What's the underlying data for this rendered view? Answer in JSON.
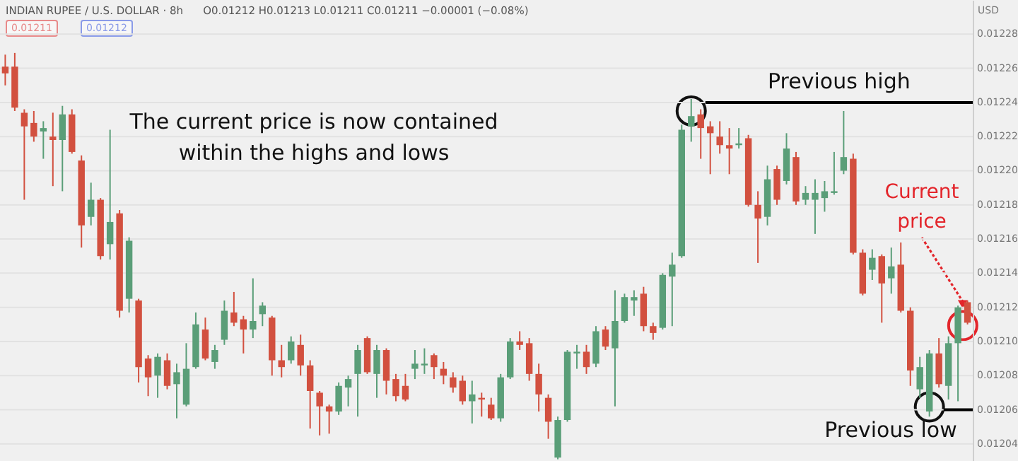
{
  "chart_data": {
    "type": "candlestick",
    "title": "INDIAN RUPEE / U.S. DOLLAR · 8h",
    "subtitle": "O0.01212 H0.01213 L0.01211 C0.01211 −0.00001 (−0.08%)",
    "ylabel": "USD",
    "categories": [
      null,
      null,
      null,
      null,
      null,
      null,
      null,
      null,
      null,
      null,
      null,
      null,
      null,
      null,
      null,
      null,
      null,
      null,
      null,
      null,
      null,
      null,
      null,
      null,
      null,
      null,
      null,
      null,
      null,
      null,
      null,
      null,
      null,
      null,
      null,
      null,
      null,
      null,
      null,
      null,
      null,
      null,
      null,
      null,
      null,
      null,
      null,
      null,
      null,
      null,
      null,
      null,
      null,
      null,
      null,
      null,
      null,
      null,
      null,
      null,
      null,
      null,
      null,
      null,
      null,
      null,
      null,
      null,
      null,
      null,
      null,
      null,
      null,
      null,
      null,
      null,
      null,
      null,
      null,
      null,
      null,
      null,
      null,
      null,
      null,
      null,
      null,
      null,
      null,
      null,
      null,
      null,
      null,
      null,
      null,
      null,
      null,
      null,
      null,
      null,
      null,
      null
    ],
    "ohlc": [
      [
        0.012261,
        0.012268,
        0.01225,
        0.012257
      ],
      [
        0.012261,
        0.012269,
        0.012235,
        0.012237
      ],
      [
        0.012234,
        0.012236,
        0.012183,
        0.012226
      ],
      [
        0.012228,
        0.012235,
        0.012217,
        0.01222
      ],
      [
        0.012223,
        0.012229,
        0.012207,
        0.012225
      ],
      [
        0.01222,
        0.012234,
        0.012191,
        0.012218
      ],
      [
        0.012218,
        0.012238,
        0.012188,
        0.012233
      ],
      [
        0.012233,
        0.012236,
        0.01221,
        0.012211
      ],
      [
        0.012206,
        0.012209,
        0.012155,
        0.012168
      ],
      [
        0.012173,
        0.012193,
        0.012168,
        0.012183
      ],
      [
        0.012183,
        0.012184,
        0.012148,
        0.01215
      ],
      [
        0.012157,
        0.012224,
        0.012148,
        0.01217
      ],
      [
        0.012175,
        0.012177,
        0.012114,
        0.012118
      ],
      [
        0.012125,
        0.012161,
        0.012117,
        0.012159
      ],
      [
        0.012124,
        0.012125,
        0.012076,
        0.012085
      ],
      [
        0.01209,
        0.012092,
        0.012068,
        0.012079
      ],
      [
        0.01208,
        0.012093,
        0.012067,
        0.012091
      ],
      [
        0.012089,
        0.012093,
        0.012072,
        0.012074
      ],
      [
        0.012075,
        0.012087,
        0.012055,
        0.012082
      ],
      [
        0.012063,
        0.012099,
        0.012062,
        0.012084
      ],
      [
        0.012085,
        0.012117,
        0.012084,
        0.01211
      ],
      [
        0.012107,
        0.012114,
        0.012089,
        0.01209
      ],
      [
        0.012088,
        0.012098,
        0.012084,
        0.012095
      ],
      [
        0.012101,
        0.012124,
        0.012098,
        0.012118
      ],
      [
        0.012117,
        0.012129,
        0.012109,
        0.012111
      ],
      [
        0.012113,
        0.012115,
        0.012093,
        0.012107
      ],
      [
        0.012107,
        0.012137,
        0.012102,
        0.012112
      ],
      [
        0.012116,
        0.012123,
        0.012109,
        0.012121
      ],
      [
        0.012114,
        0.012115,
        0.01208,
        0.012089
      ],
      [
        0.012089,
        0.012098,
        0.012079,
        0.012085
      ],
      [
        0.012089,
        0.012103,
        0.012087,
        0.0121
      ],
      [
        0.012098,
        0.012104,
        0.01208,
        0.012086
      ],
      [
        0.012086,
        0.012089,
        0.012049,
        0.012071
      ],
      [
        0.01207,
        0.012071,
        0.012045,
        0.012062
      ],
      [
        0.012062,
        0.012063,
        0.012046,
        0.012059
      ],
      [
        0.012059,
        0.012076,
        0.012057,
        0.012074
      ],
      [
        0.012073,
        0.01208,
        0.012062,
        0.012078
      ],
      [
        0.012081,
        0.012098,
        0.012056,
        0.012095
      ],
      [
        0.012102,
        0.012103,
        0.012081,
        0.012082
      ],
      [
        0.012081,
        0.012098,
        0.012067,
        0.012095
      ],
      [
        0.012095,
        0.012096,
        0.012069,
        0.012077
      ],
      [
        0.012078,
        0.012081,
        0.012065,
        0.012068
      ],
      [
        0.012074,
        0.012081,
        0.012065,
        0.012066
      ],
      [
        0.012084,
        0.012095,
        0.012078,
        0.012087
      ],
      [
        0.012086,
        0.012096,
        0.012081,
        0.012087
      ],
      [
        0.012092,
        0.012093,
        0.012078,
        0.012085
      ],
      [
        0.012084,
        0.012088,
        0.012075,
        0.01208
      ],
      [
        0.012079,
        0.012082,
        0.01207,
        0.012073
      ],
      [
        0.012077,
        0.01208,
        0.012063,
        0.012065
      ],
      [
        0.012065,
        0.012077,
        0.012052,
        0.012069
      ],
      [
        0.012067,
        0.01207,
        0.012056,
        0.012066
      ],
      [
        0.012063,
        0.012067,
        0.012054,
        0.012055
      ],
      [
        0.012055,
        0.012081,
        0.012053,
        0.012079
      ],
      [
        0.012079,
        0.012102,
        0.012078,
        0.0121
      ],
      [
        0.0121,
        0.012106,
        0.012095,
        0.012098
      ],
      [
        0.012099,
        0.012102,
        0.012077,
        0.012081
      ],
      [
        0.012081,
        0.012087,
        0.012059,
        0.012069
      ],
      [
        0.012067,
        0.012069,
        0.012043,
        0.012053
      ],
      [
        0.012032,
        0.012056,
        0.012031,
        0.012054
      ],
      [
        0.012054,
        0.012095,
        0.012053,
        0.012094
      ],
      [
        0.012093,
        0.012098,
        0.012084,
        0.012094
      ],
      [
        0.012094,
        0.012098,
        0.012081,
        0.012085
      ],
      [
        0.012087,
        0.012109,
        0.012085,
        0.012106
      ],
      [
        0.012107,
        0.012109,
        0.012095,
        0.012097
      ],
      [
        0.012096,
        0.01213,
        0.012062,
        0.012112
      ],
      [
        0.012112,
        0.012128,
        0.012111,
        0.012126
      ],
      [
        0.012124,
        0.01213,
        0.012115,
        0.012126
      ],
      [
        0.012128,
        0.012132,
        0.012106,
        0.012109
      ],
      [
        0.012109,
        0.012111,
        0.012101,
        0.012105
      ],
      [
        0.012108,
        0.01214,
        0.012107,
        0.012139
      ],
      [
        0.012138,
        0.012152,
        0.012109,
        0.012145
      ],
      [
        0.01215,
        0.012227,
        0.012149,
        0.012224
      ],
      [
        0.012226,
        0.012242,
        0.012217,
        0.012232
      ],
      [
        0.012233,
        0.012236,
        0.012207,
        0.012225
      ],
      [
        0.012226,
        0.012229,
        0.012198,
        0.012222
      ],
      [
        0.01222,
        0.012229,
        0.01221,
        0.012215
      ],
      [
        0.012215,
        0.012225,
        0.012198,
        0.012213
      ],
      [
        0.012215,
        0.012225,
        0.012213,
        0.012216
      ],
      [
        0.012219,
        0.012221,
        0.012179,
        0.01218
      ],
      [
        0.01218,
        0.012188,
        0.012146,
        0.012172
      ],
      [
        0.012173,
        0.012203,
        0.012168,
        0.012195
      ],
      [
        0.012201,
        0.012203,
        0.01218,
        0.012183
      ],
      [
        0.012194,
        0.012222,
        0.012192,
        0.012213
      ],
      [
        0.012208,
        0.012211,
        0.01218,
        0.012182
      ],
      [
        0.012183,
        0.012191,
        0.01218,
        0.012187
      ],
      [
        0.012183,
        0.012195,
        0.012163,
        0.012187
      ],
      [
        0.012184,
        0.012194,
        0.012176,
        0.012188
      ],
      [
        0.012187,
        0.012211,
        0.012186,
        0.012188
      ],
      [
        0.0122,
        0.012235,
        0.012198,
        0.012208
      ],
      [
        0.012207,
        0.01221,
        0.012151,
        0.012152
      ],
      [
        0.012152,
        0.012154,
        0.012127,
        0.012128
      ],
      [
        0.012142,
        0.012154,
        0.012136,
        0.012149
      ],
      [
        0.01215,
        0.012151,
        0.012111,
        0.012134
      ],
      [
        0.012137,
        0.012155,
        0.012128,
        0.012144
      ],
      [
        0.012145,
        0.012158,
        0.012117,
        0.012118
      ],
      [
        0.012118,
        0.01212,
        0.012074,
        0.012083
      ],
      [
        0.012072,
        0.012091,
        0.012067,
        0.012085
      ],
      [
        0.012059,
        0.012095,
        0.012056,
        0.012093
      ],
      [
        0.012093,
        0.012102,
        0.012073,
        0.012075
      ],
      [
        0.012074,
        0.012103,
        0.012066,
        0.012099
      ],
      [
        0.012099,
        0.012121,
        0.012065,
        0.01212
      ],
      [
        0.012123,
        0.012124,
        0.01211,
        0.012111
      ]
    ],
    "colors": [
      "#d2503f",
      "#d2503f",
      "#d2503f",
      "#d2503f",
      "#5a9e78",
      "#d2503f",
      "#5a9e78",
      "#d2503f",
      "#d2503f",
      "#5a9e78",
      "#d2503f",
      "#5a9e78",
      "#d2503f",
      "#5a9e78",
      "#d2503f",
      "#d2503f",
      "#5a9e78",
      "#d2503f",
      "#5a9e78",
      "#5a9e78",
      "#5a9e78",
      "#d2503f",
      "#5a9e78",
      "#5a9e78",
      "#d2503f",
      "#d2503f",
      "#5a9e78",
      "#5a9e78",
      "#d2503f",
      "#d2503f",
      "#5a9e78",
      "#d2503f",
      "#d2503f",
      "#d2503f",
      "#d2503f",
      "#5a9e78",
      "#5a9e78",
      "#5a9e78",
      "#d2503f",
      "#5a9e78",
      "#d2503f",
      "#d2503f",
      "#d2503f",
      "#5a9e78",
      "#5a9e78",
      "#d2503f",
      "#d2503f",
      "#d2503f",
      "#d2503f",
      "#5a9e78",
      "#d2503f",
      "#d2503f",
      "#5a9e78",
      "#5a9e78",
      "#d2503f",
      "#d2503f",
      "#d2503f",
      "#d2503f",
      "#5a9e78",
      "#5a9e78",
      "#5a9e78",
      "#d2503f",
      "#5a9e78",
      "#d2503f",
      "#5a9e78",
      "#5a9e78",
      "#5a9e78",
      "#d2503f",
      "#d2503f",
      "#5a9e78",
      "#5a9e78",
      "#5a9e78",
      "#5a9e78",
      "#d2503f",
      "#d2503f",
      "#d2503f",
      "#d2503f",
      "#5a9e78",
      "#d2503f",
      "#d2503f",
      "#5a9e78",
      "#d2503f",
      "#5a9e78",
      "#d2503f",
      "#5a9e78",
      "#5a9e78",
      "#5a9e78",
      "#5a9e78",
      "#5a9e78",
      "#d2503f",
      "#d2503f",
      "#5a9e78",
      "#d2503f",
      "#5a9e78",
      "#d2503f",
      "#d2503f",
      "#5a9e78",
      "#5a9e78",
      "#d2503f",
      "#5a9e78",
      "#5a9e78",
      "#d2503f"
    ],
    "ylim": [
      0.01203,
      0.0123
    ],
    "yticks": [
      0.01204,
      0.01206,
      0.01208,
      {
        "value": 0.0121,
        "label": "0.01210"
      },
      0.01212,
      0.01214,
      0.01216,
      0.01218,
      {
        "value": 0.0122,
        "label": "0.01220"
      },
      0.01222,
      0.01224,
      0.01226,
      0.01228
    ],
    "grid": "y",
    "ref_lines": [
      {
        "axis": "y",
        "value": 0.01224,
        "label": "Previous high",
        "color": "#000000"
      },
      {
        "axis": "y",
        "value": 0.01206,
        "label": "Previous low",
        "color": "#000000"
      }
    ],
    "annotations": [
      "The current price is now contained",
      "within the highs and lows",
      "Current",
      "price",
      "0.01211",
      "0.01212"
    ]
  }
}
